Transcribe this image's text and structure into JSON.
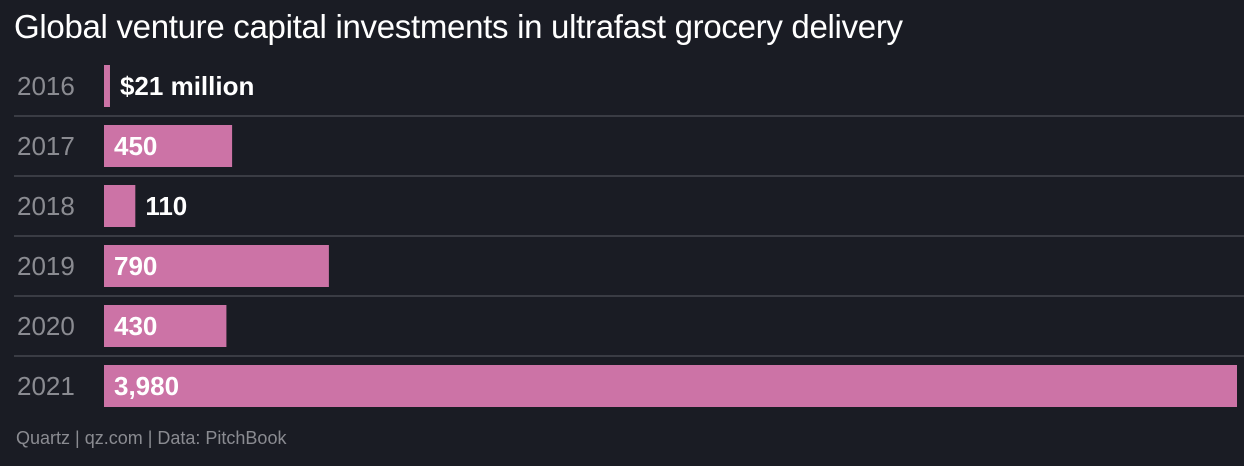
{
  "chart_data": {
    "type": "bar",
    "orientation": "horizontal",
    "title": "Global venture capital investments in ultrafast grocery delivery",
    "categories": [
      "2016",
      "2017",
      "2018",
      "2019",
      "2020",
      "2021"
    ],
    "values": [
      21,
      450,
      110,
      790,
      430,
      3980
    ],
    "value_labels": [
      "$21 million",
      "450",
      "110",
      "790",
      "430",
      "3,980"
    ],
    "unit": "$ million",
    "xlim": [
      0,
      3980
    ],
    "grid": false,
    "legend": "none",
    "bar_color": "#cc73a6",
    "gridline_color": "#3a3c44",
    "source": "Quartz | qz.com | Data: PitchBook"
  }
}
